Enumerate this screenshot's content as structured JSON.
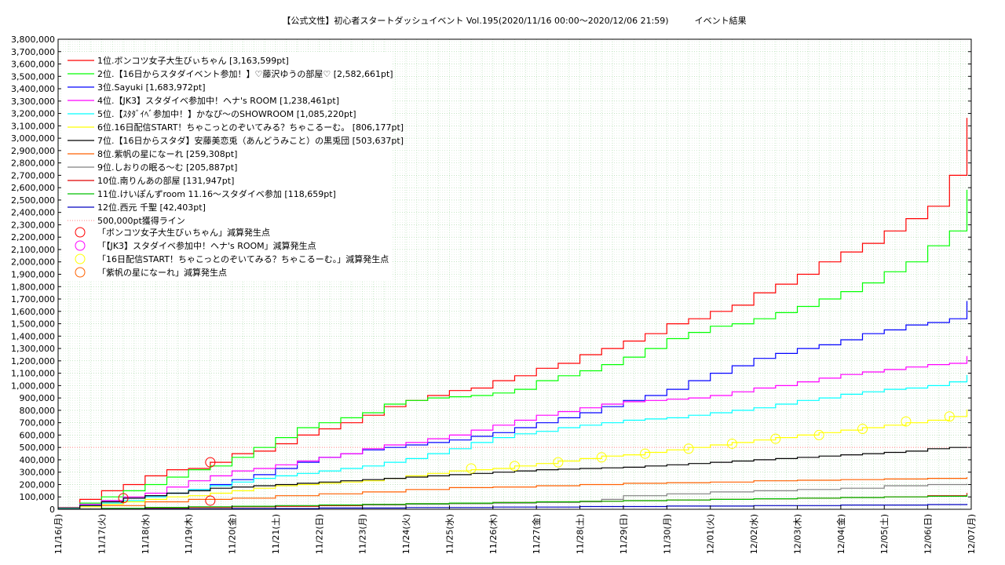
{
  "chart_data": {
    "type": "line",
    "title": "【公式文性】初心者スタートダッシュイベント Vol.195(2020/11/16 00:00～2020/12/06 21:59)　　　イベント結果",
    "xlabel": "",
    "ylabel": "",
    "x_ticks": [
      "11/16(月)",
      "11/17(火)",
      "11/18(水)",
      "11/19(木)",
      "11/20(金)",
      "11/21(土)",
      "11/22(日)",
      "11/23(月)",
      "11/24(火)",
      "11/25(水)",
      "11/26(木)",
      "11/27(金)",
      "11/28(土)",
      "11/29(日)",
      "11/30(月)",
      "12/01(火)",
      "12/02(水)",
      "12/03(木)",
      "12/04(金)",
      "12/05(土)",
      "12/06(日)",
      "12/07(月)"
    ],
    "y_ticks": [
      "0",
      "100,000",
      "200,000",
      "300,000",
      "400,000",
      "500,000",
      "600,000",
      "700,000",
      "800,000",
      "900,000",
      "1,000,000",
      "1,100,000",
      "1,200,000",
      "1,300,000",
      "1,400,000",
      "1,500,000",
      "1,600,000",
      "1,700,000",
      "1,800,000",
      "1,900,000",
      "2,000,000",
      "2,100,000",
      "2,200,000",
      "2,300,000",
      "2,400,000",
      "2,500,000",
      "2,600,000",
      "2,700,000",
      "2,800,000",
      "2,900,000",
      "3,000,000",
      "3,100,000",
      "3,200,000",
      "3,300,000",
      "3,400,000",
      "3,500,000",
      "3,600,000",
      "3,700,000",
      "3,800,000"
    ],
    "ylim": [
      0,
      3800000
    ],
    "xlim": [
      0,
      21
    ],
    "grid": true,
    "legend_position": "top-left",
    "series": [
      {
        "name": "1位.ボンコツ女子大生びぃちゃん [3,163,599pt]",
        "color": "#ff0000",
        "x": [
          0,
          0.5,
          1,
          1.5,
          2,
          2.5,
          3,
          3.5,
          4,
          4.5,
          5,
          5.5,
          6,
          6.5,
          7,
          7.5,
          8,
          8.5,
          9,
          9.5,
          10,
          10.5,
          11,
          11.5,
          12,
          12.5,
          13,
          13.5,
          14,
          14.5,
          15,
          15.5,
          16,
          16.5,
          17,
          17.5,
          18,
          18.5,
          19,
          19.5,
          20,
          20.5,
          20.9
        ],
        "y": [
          15000,
          80000,
          150000,
          200000,
          270000,
          320000,
          330000,
          380000,
          450000,
          470000,
          530000,
          600000,
          650000,
          700000,
          760000,
          830000,
          880000,
          920000,
          960000,
          980000,
          1040000,
          1080000,
          1140000,
          1180000,
          1250000,
          1300000,
          1360000,
          1420000,
          1500000,
          1540000,
          1600000,
          1650000,
          1750000,
          1820000,
          1900000,
          2000000,
          2080000,
          2150000,
          2250000,
          2350000,
          2450000,
          2700000,
          3163599
        ]
      },
      {
        "name": "2位.【16日からスタダイベント参加！】♡藤沢ゆうの部屋♡ [2,582,661pt]",
        "color": "#00ff00",
        "x": [
          0,
          0.5,
          1,
          1.5,
          2,
          2.5,
          3,
          3.5,
          4,
          4.5,
          5,
          5.5,
          6,
          6.5,
          7,
          7.5,
          8,
          8.5,
          9,
          9.5,
          10,
          10.5,
          11,
          11.5,
          12,
          12.5,
          13,
          13.5,
          14,
          14.5,
          15,
          15.5,
          16,
          16.5,
          17,
          17.5,
          18,
          18.5,
          19,
          19.5,
          20,
          20.5,
          20.9
        ],
        "y": [
          10000,
          50000,
          100000,
          150000,
          200000,
          260000,
          320000,
          350000,
          420000,
          500000,
          580000,
          660000,
          700000,
          740000,
          780000,
          850000,
          880000,
          900000,
          910000,
          920000,
          940000,
          970000,
          1040000,
          1080000,
          1120000,
          1170000,
          1230000,
          1300000,
          1380000,
          1430000,
          1480000,
          1500000,
          1540000,
          1590000,
          1640000,
          1700000,
          1760000,
          1830000,
          1920000,
          2000000,
          2130000,
          2250000,
          2582661
        ]
      },
      {
        "name": "3位.Sayuki [1,683,972pt]",
        "color": "#0000ff",
        "x": [
          0,
          0.5,
          1,
          1.5,
          2,
          2.5,
          3,
          3.5,
          4,
          4.5,
          5,
          5.5,
          6,
          6.5,
          7,
          7.5,
          8,
          8.5,
          9,
          9.5,
          10,
          10.5,
          11,
          11.5,
          12,
          12.5,
          13,
          13.5,
          14,
          14.5,
          15,
          15.5,
          16,
          16.5,
          17,
          17.5,
          18,
          18.5,
          19,
          19.5,
          20,
          20.5,
          20.9
        ],
        "y": [
          10000,
          40000,
          70000,
          90000,
          110000,
          130000,
          160000,
          200000,
          240000,
          280000,
          330000,
          380000,
          420000,
          450000,
          480000,
          500000,
          520000,
          540000,
          560000,
          590000,
          620000,
          660000,
          700000,
          740000,
          780000,
          830000,
          880000,
          920000,
          970000,
          1040000,
          1100000,
          1160000,
          1220000,
          1260000,
          1300000,
          1330000,
          1370000,
          1420000,
          1450000,
          1490000,
          1510000,
          1540000,
          1683972
        ]
      },
      {
        "name": "4位.【JK3】スタダイベ参加中！ヘナ's ROOM [1,238,461pt]",
        "color": "#ff00ff",
        "x": [
          0,
          0.5,
          1,
          1.5,
          2,
          2.5,
          3,
          3.5,
          4,
          4.5,
          5,
          5.5,
          6,
          6.5,
          7,
          7.5,
          8,
          8.5,
          9,
          9.5,
          10,
          10.5,
          11,
          11.5,
          12,
          12.5,
          13,
          13.5,
          14,
          14.5,
          15,
          15.5,
          16,
          16.5,
          17,
          17.5,
          18,
          18.5,
          19,
          19.5,
          20,
          20.5,
          20.9
        ],
        "y": [
          10000,
          40000,
          70000,
          100000,
          130000,
          180000,
          230000,
          270000,
          310000,
          330000,
          360000,
          390000,
          420000,
          450000,
          490000,
          520000,
          540000,
          570000,
          600000,
          640000,
          680000,
          720000,
          760000,
          790000,
          820000,
          850000,
          870000,
          880000,
          890000,
          900000,
          920000,
          950000,
          980000,
          1000000,
          1030000,
          1060000,
          1090000,
          1110000,
          1130000,
          1150000,
          1170000,
          1180000,
          1238461
        ]
      },
      {
        "name": "5位.【ｽﾀﾀﾞｲﾍﾞ参加中！】かなぴ～のSHOWROOM [1,085,220pt]",
        "color": "#00ffff",
        "x": [
          0,
          0.5,
          1,
          1.5,
          2,
          2.5,
          3,
          3.5,
          4,
          4.5,
          5,
          5.5,
          6,
          6.5,
          7,
          7.5,
          8,
          8.5,
          9,
          9.5,
          10,
          10.5,
          11,
          11.5,
          12,
          12.5,
          13,
          13.5,
          14,
          14.5,
          15,
          15.5,
          16,
          16.5,
          17,
          17.5,
          18,
          18.5,
          19,
          19.5,
          20,
          20.5,
          20.9
        ],
        "y": [
          10000,
          30000,
          50000,
          70000,
          100000,
          130000,
          160000,
          190000,
          220000,
          250000,
          270000,
          290000,
          310000,
          330000,
          350000,
          380000,
          410000,
          450000,
          490000,
          540000,
          580000,
          610000,
          630000,
          660000,
          680000,
          700000,
          720000,
          730000,
          740000,
          760000,
          780000,
          800000,
          820000,
          850000,
          880000,
          900000,
          930000,
          950000,
          970000,
          980000,
          1000000,
          1030000,
          1085220
        ]
      },
      {
        "name": "6位.16日配信START！ちゃこっとのぞいてみる？ちゃこるーむ。 [806,177pt]",
        "color": "#ffff00",
        "x": [
          0,
          0.5,
          1,
          1.5,
          2,
          2.5,
          3,
          3.5,
          4,
          4.5,
          5,
          5.5,
          6,
          6.5,
          7,
          7.5,
          8,
          8.5,
          9,
          9.5,
          10,
          10.5,
          11,
          11.5,
          12,
          12.5,
          13,
          13.5,
          14,
          14.5,
          15,
          15.5,
          16,
          16.5,
          17,
          17.5,
          18,
          18.5,
          19,
          19.5,
          20,
          20.5,
          20.9
        ],
        "y": [
          5000,
          20000,
          40000,
          60000,
          80000,
          100000,
          110000,
          130000,
          150000,
          170000,
          190000,
          200000,
          210000,
          220000,
          230000,
          250000,
          270000,
          290000,
          310000,
          320000,
          330000,
          350000,
          370000,
          390000,
          410000,
          430000,
          440000,
          460000,
          480000,
          500000,
          520000,
          540000,
          560000,
          580000,
          600000,
          620000,
          640000,
          660000,
          680000,
          700000,
          720000,
          750000,
          806177
        ]
      },
      {
        "name": "7位.【16日からスタダ】安藤美恋兎（あんどうみこと）の黒兎団 [503,637pt]",
        "color": "#000000",
        "x": [
          0,
          0.5,
          1,
          1.5,
          2,
          2.5,
          3,
          3.5,
          4,
          4.5,
          5,
          5.5,
          6,
          6.5,
          7,
          7.5,
          8,
          8.5,
          9,
          9.5,
          10,
          10.5,
          11,
          11.5,
          12,
          12.5,
          13,
          13.5,
          14,
          14.5,
          15,
          15.5,
          16,
          16.5,
          17,
          17.5,
          18,
          18.5,
          19,
          19.5,
          20,
          20.5,
          20.9
        ],
        "y": [
          5000,
          30000,
          60000,
          90000,
          110000,
          130000,
          150000,
          170000,
          180000,
          190000,
          200000,
          210000,
          220000,
          230000,
          240000,
          250000,
          260000,
          270000,
          280000,
          290000,
          300000,
          310000,
          320000,
          325000,
          330000,
          335000,
          340000,
          350000,
          360000,
          370000,
          380000,
          390000,
          400000,
          410000,
          420000,
          430000,
          440000,
          450000,
          460000,
          470000,
          490000,
          500000,
          503637
        ]
      },
      {
        "name": "8位.紫帆の星になーれ [259,308pt]",
        "color": "#ff6000",
        "x": [
          0,
          1,
          2,
          3,
          4,
          5,
          6,
          7,
          8,
          9,
          10,
          11,
          12,
          13,
          14,
          15,
          16,
          17,
          18,
          19,
          20,
          20.9
        ],
        "y": [
          3000,
          30000,
          60000,
          80000,
          90000,
          110000,
          125000,
          140000,
          160000,
          175000,
          180000,
          190000,
          200000,
          210000,
          215000,
          220000,
          230000,
          235000,
          240000,
          245000,
          250000,
          259308
        ]
      },
      {
        "name": "9位.しおりの眠る～む [205,887pt]",
        "color": "#808080",
        "x": [
          0,
          1,
          2,
          3,
          4,
          5,
          6,
          7,
          8,
          9,
          10,
          11,
          12,
          12.5,
          13,
          14,
          15,
          16,
          17,
          18,
          19,
          20,
          20.9
        ],
        "y": [
          2000,
          5000,
          10000,
          15000,
          20000,
          25000,
          30000,
          35000,
          40000,
          45000,
          50000,
          55000,
          60000,
          80000,
          110000,
          125000,
          140000,
          150000,
          160000,
          170000,
          190000,
          200000,
          205887
        ]
      },
      {
        "name": "10位.南りんあの部屋 [131,947pt]",
        "color": "#e00000",
        "x": [
          0,
          1,
          2,
          3,
          4,
          5,
          6,
          7,
          8,
          9,
          10,
          11,
          12,
          13,
          14,
          15,
          16,
          17,
          18,
          19,
          20,
          20.9
        ],
        "y": [
          1000,
          5000,
          10000,
          15000,
          20000,
          25000,
          30000,
          40000,
          45000,
          50000,
          55000,
          60000,
          65000,
          70000,
          75000,
          80000,
          85000,
          90000,
          95000,
          100000,
          110000,
          131947
        ]
      },
      {
        "name": "11位.けいぽんずroom 11.16～スタダイベ参加 [118,659pt]",
        "color": "#00c000",
        "x": [
          0,
          1,
          2,
          3,
          4,
          5,
          6,
          7,
          8,
          9,
          10,
          11,
          12,
          13,
          14,
          15,
          16,
          17,
          18,
          19,
          20,
          20.9
        ],
        "y": [
          2000,
          8000,
          15000,
          20000,
          25000,
          30000,
          35000,
          40000,
          45000,
          50000,
          55000,
          60000,
          65000,
          70000,
          75000,
          80000,
          85000,
          90000,
          95000,
          100000,
          105000,
          118659
        ]
      },
      {
        "name": "12位.西元 千聖 [42,403pt]",
        "color": "#0000c0",
        "x": [
          0,
          2,
          4,
          6,
          8,
          10,
          12,
          14,
          16,
          18,
          20,
          20.9
        ],
        "y": [
          500,
          3000,
          6000,
          10000,
          14000,
          18000,
          22000,
          26000,
          30000,
          34000,
          38000,
          42403
        ]
      }
    ],
    "reference_line": {
      "name": "500,000pt獲得ライン",
      "value": 500000,
      "color": "#ff8080"
    },
    "marker_series": [
      {
        "name": "「ボンコツ女子大生びぃちゃん」減算発生点",
        "color": "#ff0000",
        "points": [
          {
            "x": 1.5,
            "y": 90000
          },
          {
            "x": 3.5,
            "y": 380000
          },
          {
            "x": 3.5,
            "y": 70000
          }
        ]
      },
      {
        "name": "「【JK3】スタダイベ参加中！ヘナ's ROOM」減算発生点",
        "color": "#ff00ff",
        "points": []
      },
      {
        "name": "「16日配信START！ちゃこっとのぞいてみる？ちゃこるーむ。」減算発生点",
        "color": "#ffff00",
        "points": [
          {
            "x": 9.5,
            "y": 330000
          },
          {
            "x": 10.5,
            "y": 350000
          },
          {
            "x": 11.5,
            "y": 380000
          },
          {
            "x": 12.5,
            "y": 420000
          },
          {
            "x": 13.5,
            "y": 450000
          },
          {
            "x": 14.5,
            "y": 490000
          },
          {
            "x": 15.5,
            "y": 530000
          },
          {
            "x": 16.5,
            "y": 570000
          },
          {
            "x": 17.5,
            "y": 600000
          },
          {
            "x": 18.5,
            "y": 650000
          },
          {
            "x": 19.5,
            "y": 710000
          },
          {
            "x": 20.5,
            "y": 750000
          }
        ]
      },
      {
        "name": "「紫帆の星になーれ」減算発生点",
        "color": "#ff6000",
        "points": []
      }
    ]
  }
}
